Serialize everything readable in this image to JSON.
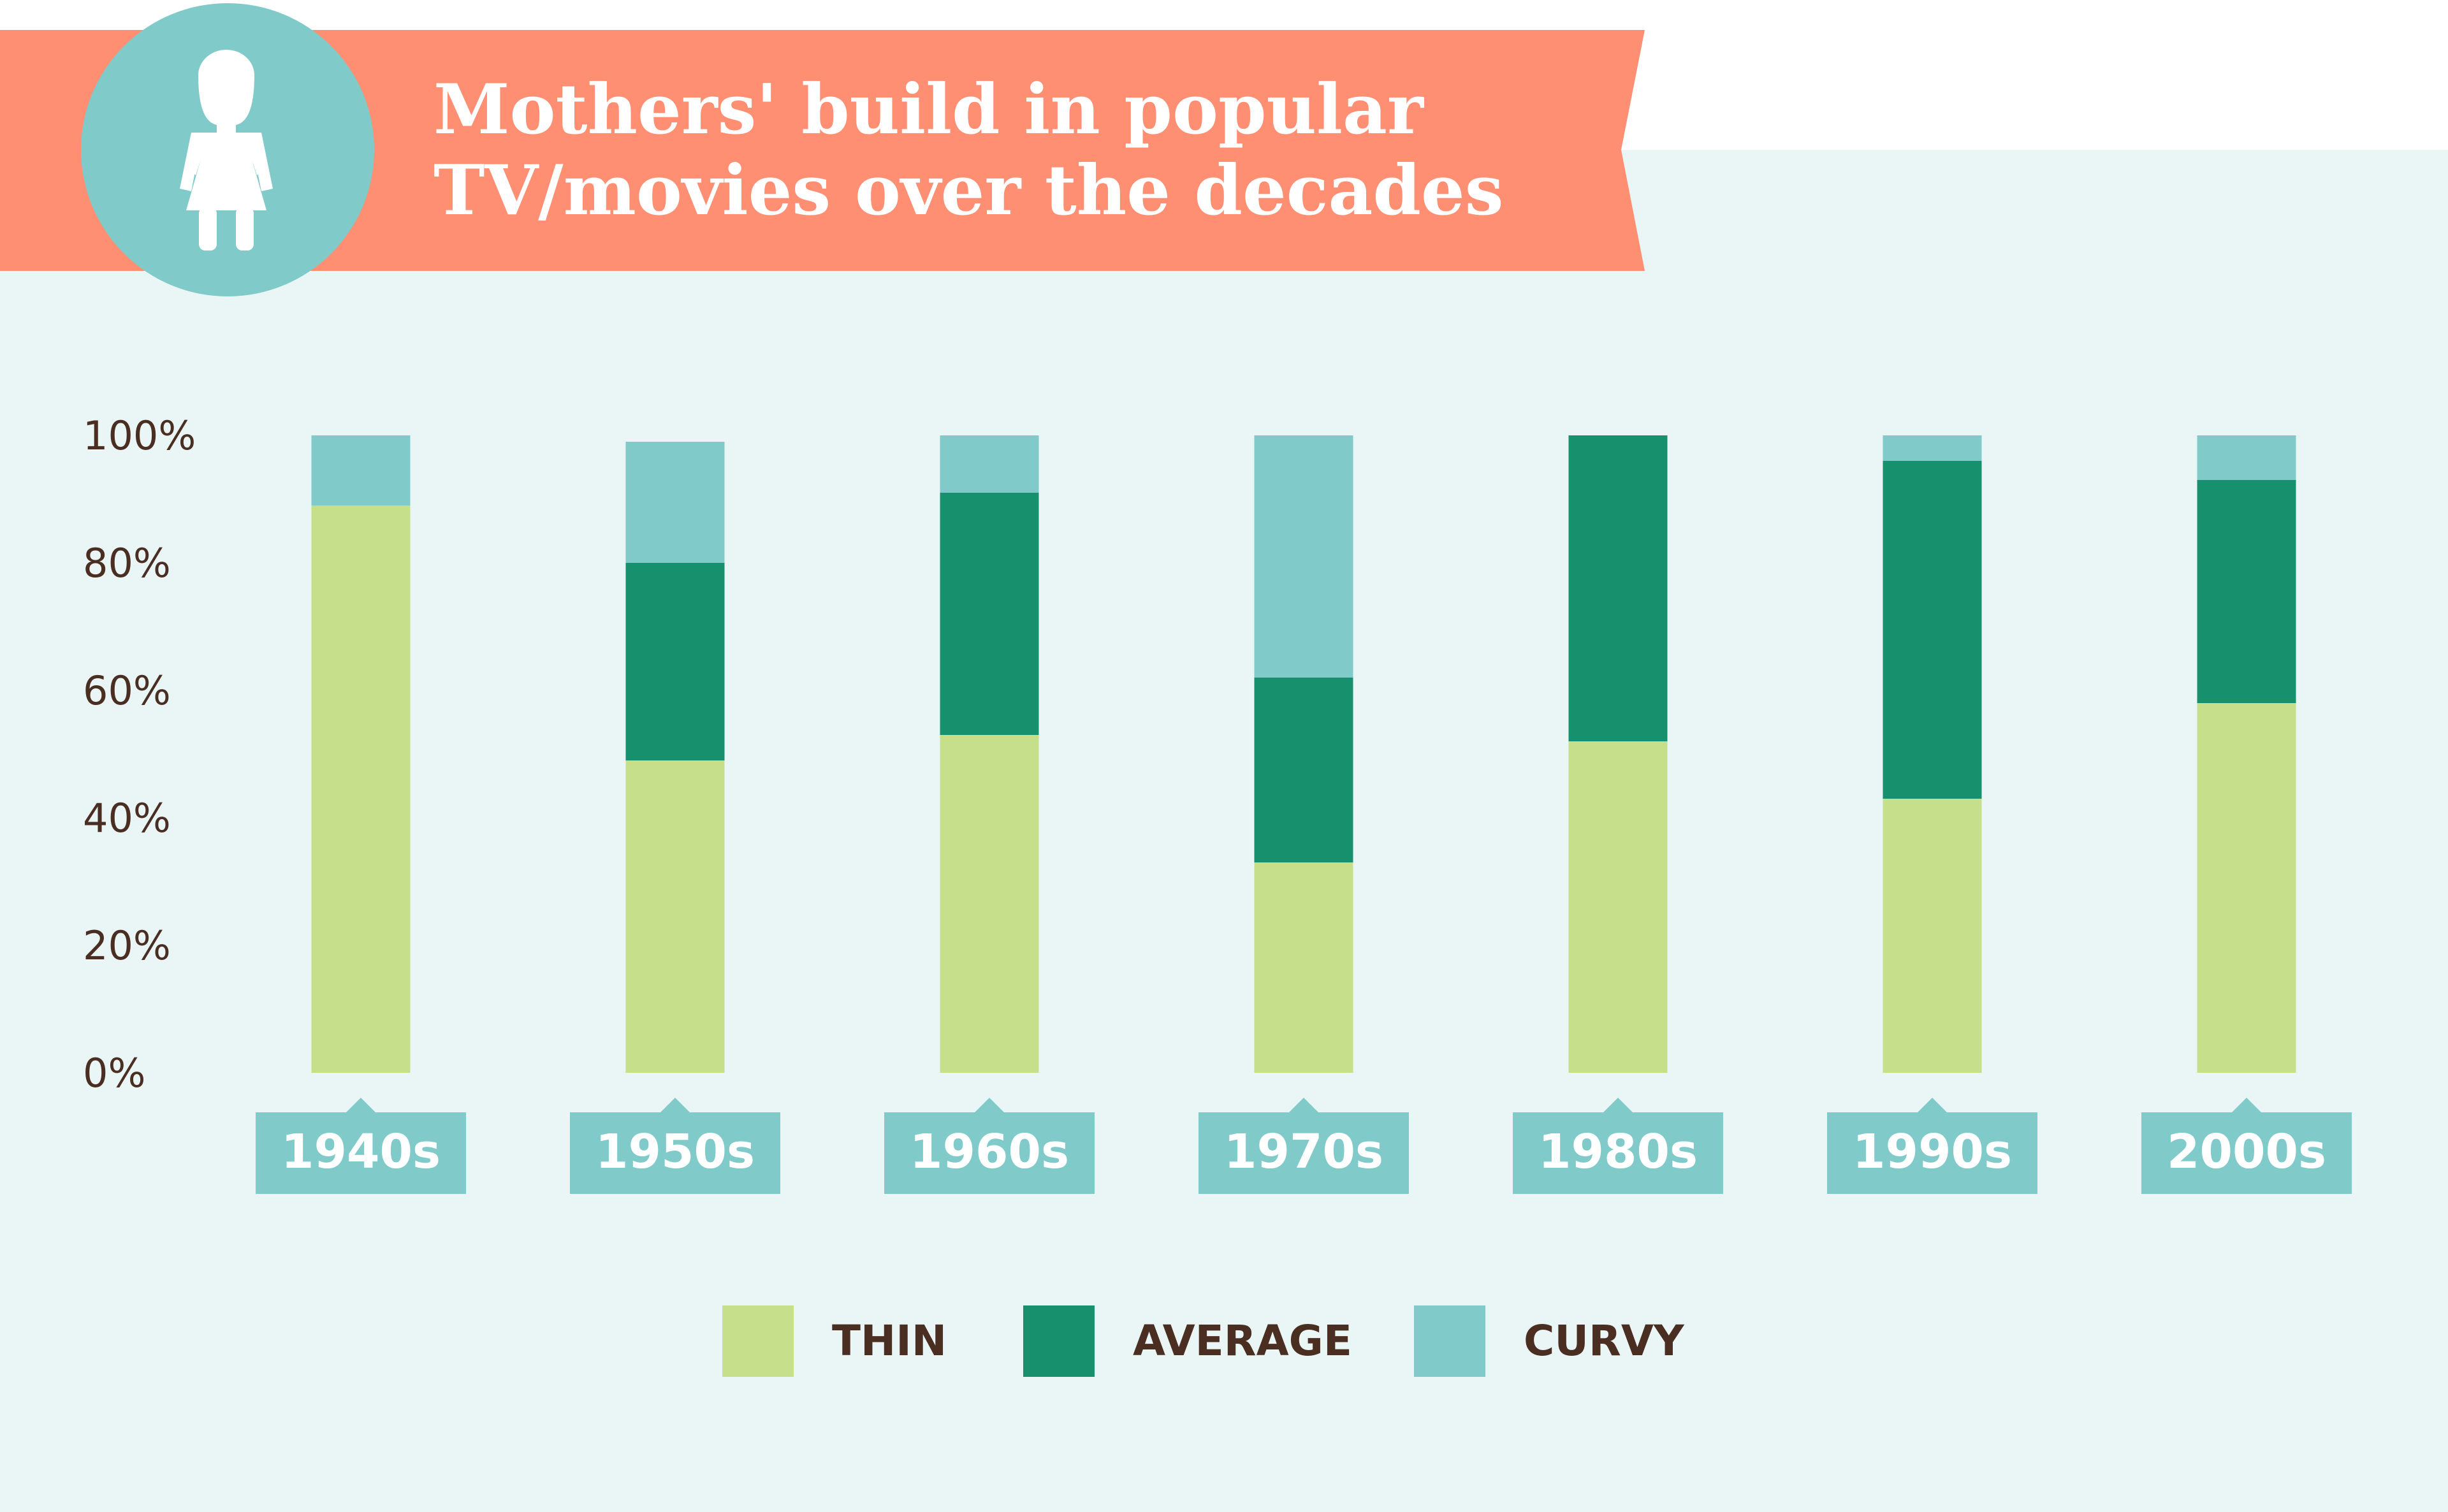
{
  "header": {
    "title_line1": "Mothers' build in popular",
    "title_line2": "TV/movies over the decades",
    "icon": "woman-icon"
  },
  "colors": {
    "background_panel": "#eaf6f6",
    "banner": "#fe8f72",
    "icon_circle": "#80cbc9",
    "thin": "#c5df8a",
    "average": "#16906d",
    "curvy": "#80cbc9",
    "axis_text": "#4a2e22",
    "tag_text": "#ffffff"
  },
  "chart_data": {
    "type": "bar",
    "stacked": true,
    "categories": [
      "1940s",
      "1950s",
      "1960s",
      "1970s",
      "1980s",
      "1990s",
      "2000s"
    ],
    "series": [
      {
        "name": "THIN",
        "values": [
          89,
          49,
          53,
          33,
          52,
          43,
          58
        ]
      },
      {
        "name": "AVERAGE",
        "values": [
          0,
          31,
          38,
          29,
          48,
          53,
          35
        ]
      },
      {
        "name": "CURVY",
        "values": [
          11,
          19,
          9,
          38,
          0,
          4,
          7
        ]
      }
    ],
    "yticks": [
      "0%",
      "20%",
      "40%",
      "60%",
      "80%",
      "100%"
    ],
    "ylim": [
      0,
      100
    ],
    "legend": {
      "position": "bottom"
    }
  }
}
